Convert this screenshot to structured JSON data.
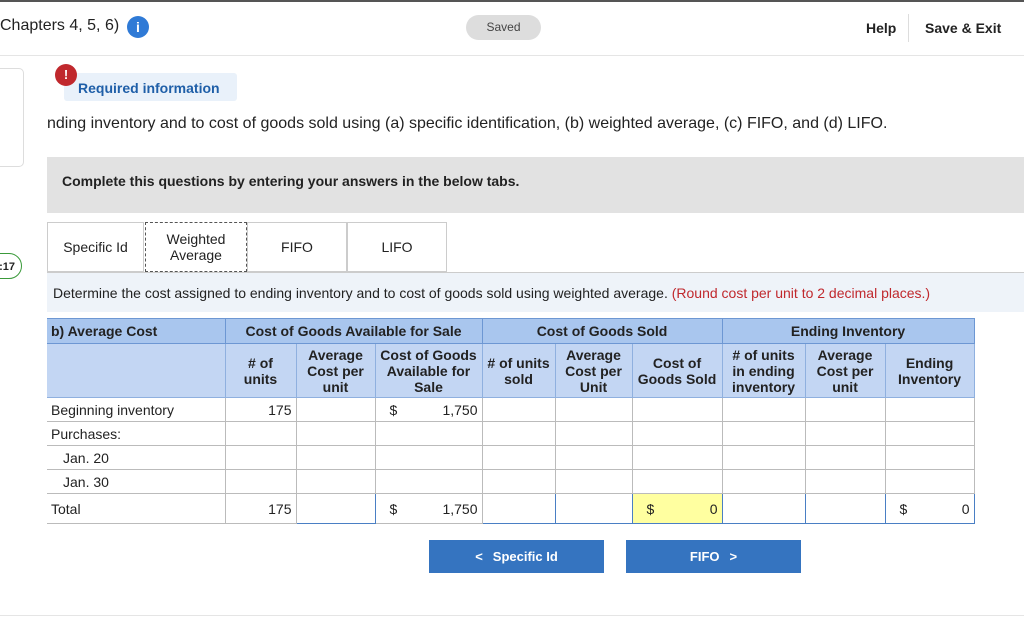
{
  "header": {
    "title": "Chapters 4, 5, 6)",
    "status": "Saved",
    "help": "Help",
    "save_exit": "Save & Exit"
  },
  "timer": ":17",
  "required": {
    "label": "Required information",
    "text": "nding inventory and to cost of goods sold using (a) specific identification, (b) weighted average, (c) FIFO, and (d) LIFO."
  },
  "instruction": "Complete this questions by entering your answers in the below tabs.",
  "tabs": [
    "Specific Id",
    "Weighted Average",
    "FIFO",
    "LIFO"
  ],
  "prompt": {
    "text": "Determine the cost assigned to ending inventory and to cost of goods sold using weighted average.",
    "note": "(Round cost per unit to 2 decimal places.)"
  },
  "table": {
    "title": "b) Average Cost",
    "groups": [
      "Cost of Goods Available for Sale",
      "Cost of Goods Sold",
      "Ending Inventory"
    ],
    "columns": [
      "# of units",
      "Average Cost per unit",
      "Cost of Goods Available for Sale",
      "# of units sold",
      "Average Cost per Unit",
      "Cost of Goods Sold",
      "# of units in ending inventory",
      "Average Cost per unit",
      "Ending Inventory"
    ],
    "rows": [
      {
        "label": "Beginning inventory",
        "cells": [
          "175",
          null,
          {
            "currency": "$",
            "amount": "1,750"
          },
          null,
          null,
          null,
          null,
          null,
          null
        ]
      },
      {
        "label": "Purchases:",
        "cells": [
          null,
          null,
          null,
          null,
          null,
          null,
          null,
          null,
          null
        ]
      },
      {
        "label": "Jan. 20",
        "cells": [
          null,
          null,
          null,
          null,
          null,
          null,
          null,
          null,
          null
        ]
      },
      {
        "label": "Jan. 30",
        "cells": [
          null,
          null,
          null,
          null,
          null,
          null,
          null,
          null,
          null
        ]
      },
      {
        "label": "Total",
        "cells": [
          "175",
          null,
          {
            "currency": "$",
            "amount": "1,750"
          },
          null,
          null,
          {
            "currency": "$",
            "amount": "0"
          },
          null,
          null,
          {
            "currency": "$",
            "amount": "0"
          }
        ]
      }
    ]
  },
  "nav": {
    "prev": "Specific Id",
    "next": "FIFO"
  }
}
